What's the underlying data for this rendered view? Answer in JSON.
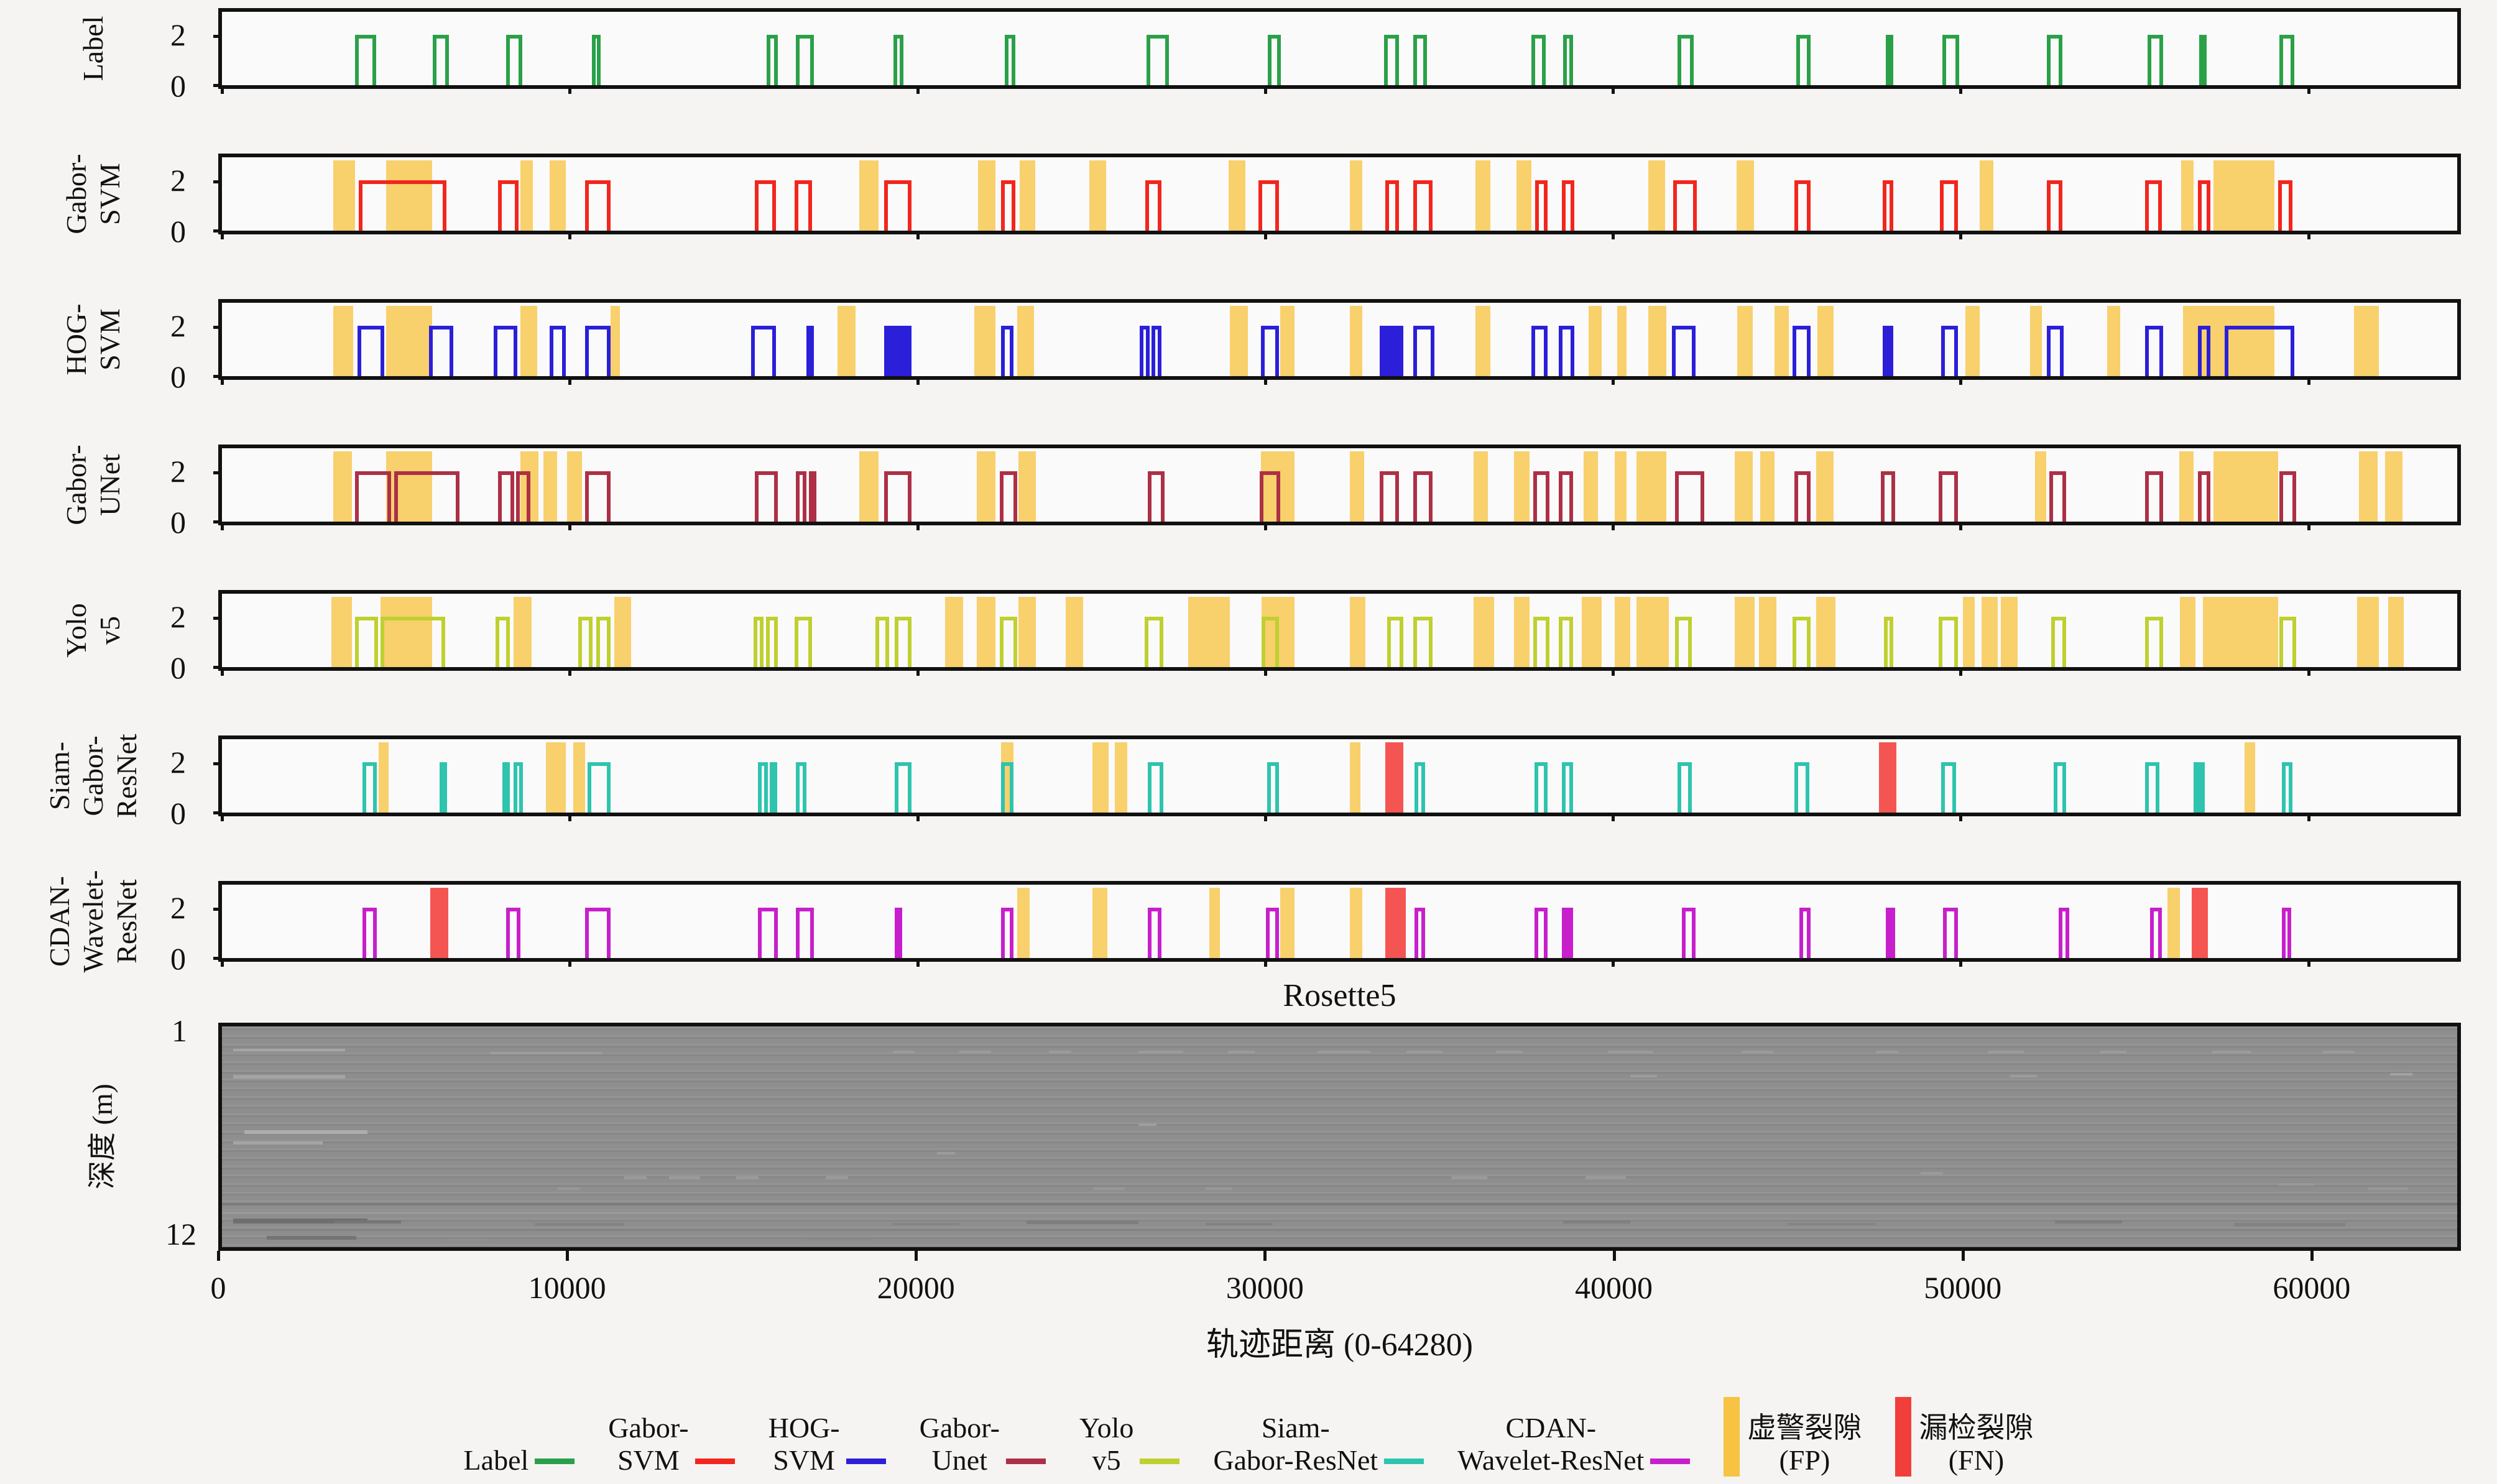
{
  "figure": {
    "title": "Rosette5",
    "xlabel": "轨迹距离 (0-64280)",
    "background": "#f5f4f2",
    "axis_color": "#111111"
  },
  "chart_data": {
    "type": "line",
    "subtype": "square-wave-detection-strips",
    "x_range": [
      0,
      64280
    ],
    "x_ticks": [
      0,
      10000,
      20000,
      30000,
      40000,
      50000,
      60000
    ],
    "strip_y_ticks": [
      "2",
      "0"
    ],
    "fp_color": "#f7be2f",
    "fn_color": "#f23e3a",
    "rows": [
      {
        "id": "label",
        "name_lines": "Label",
        "color": "#2aa148",
        "pulses": [
          [
            3830,
            4440
          ],
          [
            6070,
            6520
          ],
          [
            8180,
            8630
          ],
          [
            10640,
            10890
          ],
          [
            15670,
            15980
          ],
          [
            16500,
            17020
          ],
          [
            19310,
            19600
          ],
          [
            22520,
            22810
          ],
          [
            26580,
            27240
          ],
          [
            30080,
            30450
          ],
          [
            33420,
            33840
          ],
          [
            34250,
            34660
          ],
          [
            37650,
            38060
          ],
          [
            38560,
            38850
          ],
          [
            41850,
            42330
          ],
          [
            45270,
            45680
          ],
          [
            47850,
            48020
          ],
          [
            49470,
            49950
          ],
          [
            52470,
            52930
          ],
          [
            55370,
            55820
          ],
          [
            56860,
            56990
          ],
          [
            59170,
            59590
          ]
        ],
        "fp": [],
        "fn": []
      },
      {
        "id": "gabor-svm",
        "name_lines": "Gabor-\nSVM",
        "color": "#f2261d",
        "pulses": [
          [
            3930,
            6460
          ],
          [
            7930,
            8530
          ],
          [
            10450,
            11180
          ],
          [
            15320,
            15940
          ],
          [
            16460,
            16970
          ],
          [
            19040,
            19830
          ],
          [
            22400,
            22810
          ],
          [
            26560,
            27010
          ],
          [
            29810,
            30390
          ],
          [
            33460,
            33840
          ],
          [
            34250,
            34810
          ],
          [
            37770,
            38120
          ],
          [
            38540,
            38890
          ],
          [
            41740,
            42410
          ],
          [
            45220,
            45680
          ],
          [
            47750,
            48060
          ],
          [
            49400,
            49920
          ],
          [
            52470,
            52930
          ],
          [
            55300,
            55780
          ],
          [
            56820,
            57190
          ],
          [
            59130,
            59550
          ]
        ],
        "fp": [
          [
            3200,
            3830
          ],
          [
            4720,
            6040
          ],
          [
            8590,
            8940
          ],
          [
            9420,
            9890
          ],
          [
            18320,
            18880
          ],
          [
            21740,
            22250
          ],
          [
            22940,
            23390
          ],
          [
            24940,
            25420
          ],
          [
            28940,
            29440
          ],
          [
            32430,
            32800
          ],
          [
            36050,
            36470
          ],
          [
            37230,
            37650
          ],
          [
            41020,
            41500
          ],
          [
            43550,
            44060
          ],
          [
            50540,
            50950
          ],
          [
            56340,
            56690
          ],
          [
            57270,
            59030
          ]
        ],
        "fn": []
      },
      {
        "id": "hog-svm",
        "name_lines": "HOG-\nSVM",
        "color": "#2b1fd9",
        "pulses": [
          [
            3890,
            4660
          ],
          [
            5960,
            6660
          ],
          [
            7820,
            8490
          ],
          [
            9420,
            9890
          ],
          [
            10450,
            11180
          ],
          [
            15210,
            15940
          ],
          [
            16800,
            16970
          ],
          [
            19040,
            19830,
            1
          ],
          [
            22400,
            22770
          ],
          [
            26400,
            26680
          ],
          [
            26740,
            27010
          ],
          [
            29870,
            30390
          ],
          [
            33300,
            33980,
            1
          ],
          [
            34250,
            34870
          ],
          [
            37650,
            38120
          ],
          [
            38440,
            38890
          ],
          [
            41700,
            42370
          ],
          [
            45160,
            45680
          ],
          [
            47750,
            48060,
            1
          ],
          [
            49440,
            49920
          ],
          [
            52470,
            52970
          ],
          [
            55300,
            55820
          ],
          [
            56820,
            57190
          ],
          [
            57600,
            59590
          ]
        ],
        "fp": [
          [
            3200,
            3770
          ],
          [
            4720,
            6040
          ],
          [
            8590,
            9060
          ],
          [
            11180,
            11440
          ],
          [
            17700,
            18220
          ],
          [
            21630,
            22250
          ],
          [
            22870,
            23350
          ],
          [
            28980,
            29500
          ],
          [
            30430,
            30840
          ],
          [
            32430,
            32800
          ],
          [
            36050,
            36470
          ],
          [
            39300,
            39680
          ],
          [
            40130,
            40400
          ],
          [
            41020,
            41540
          ],
          [
            43570,
            44020
          ],
          [
            44640,
            45050
          ],
          [
            45880,
            46340
          ],
          [
            50130,
            50540
          ],
          [
            51990,
            52340
          ],
          [
            54210,
            54580
          ],
          [
            56400,
            59030
          ],
          [
            61310,
            62030
          ]
        ],
        "fn": []
      },
      {
        "id": "gabor-unet",
        "name_lines": "Gabor-\nUNet",
        "color": "#ad3046",
        "pulses": [
          [
            3830,
            4860
          ],
          [
            4950,
            6830
          ],
          [
            7930,
            8410
          ],
          [
            8450,
            8860
          ],
          [
            10450,
            11180
          ],
          [
            15320,
            15980
          ],
          [
            16510,
            16800
          ],
          [
            16880,
            17020
          ],
          [
            19040,
            19830
          ],
          [
            22360,
            22870
          ],
          [
            26620,
            27110
          ],
          [
            29850,
            30430
          ],
          [
            33300,
            33840
          ],
          [
            34250,
            34810
          ],
          [
            37710,
            38180
          ],
          [
            38440,
            38850
          ],
          [
            41780,
            42620
          ],
          [
            45220,
            45680
          ],
          [
            47710,
            48120
          ],
          [
            49360,
            49920
          ],
          [
            52550,
            53030
          ],
          [
            55300,
            55820
          ],
          [
            56820,
            57190
          ],
          [
            59170,
            59650
          ]
        ],
        "fp": [
          [
            3200,
            3730
          ],
          [
            4720,
            6040
          ],
          [
            8590,
            9110
          ],
          [
            9250,
            9630
          ],
          [
            9930,
            10350
          ],
          [
            18320,
            18880
          ],
          [
            21700,
            22250
          ],
          [
            22900,
            23400
          ],
          [
            29870,
            30840
          ],
          [
            32430,
            32840
          ],
          [
            35990,
            36410
          ],
          [
            37150,
            37610
          ],
          [
            39160,
            39570
          ],
          [
            40050,
            40400
          ],
          [
            40670,
            41540
          ],
          [
            43500,
            44020
          ],
          [
            44230,
            44640
          ],
          [
            45840,
            46340
          ],
          [
            52140,
            52470
          ],
          [
            56280,
            56690
          ],
          [
            57270,
            59130
          ],
          [
            61450,
            61990
          ],
          [
            62200,
            62700
          ]
        ],
        "fn": []
      },
      {
        "id": "yolo-v5",
        "name_lines": "Yolo\nv5",
        "color": "#bfd02f",
        "pulses": [
          [
            3830,
            4480
          ],
          [
            4560,
            6420
          ],
          [
            7870,
            8280
          ],
          [
            10240,
            10660
          ],
          [
            10760,
            11180
          ],
          [
            15280,
            15570
          ],
          [
            15650,
            15980
          ],
          [
            16460,
            16970
          ],
          [
            18790,
            19180
          ],
          [
            19350,
            19830
          ],
          [
            22360,
            22870
          ],
          [
            26540,
            27070
          ],
          [
            29900,
            30390
          ],
          [
            33500,
            33970
          ],
          [
            34250,
            34810
          ],
          [
            37710,
            38180
          ],
          [
            38440,
            38850
          ],
          [
            41780,
            42270
          ],
          [
            45160,
            45680
          ],
          [
            47790,
            48060
          ],
          [
            49360,
            49920
          ],
          [
            52610,
            53030
          ],
          [
            55300,
            55820
          ],
          [
            59170,
            59650
          ]
        ],
        "fp": [
          [
            3150,
            3730
          ],
          [
            4560,
            6040
          ],
          [
            8390,
            8900
          ],
          [
            11280,
            11760
          ],
          [
            20800,
            21320
          ],
          [
            21700,
            22250
          ],
          [
            22900,
            23400
          ],
          [
            24260,
            24760
          ],
          [
            27780,
            28980
          ],
          [
            29900,
            30840
          ],
          [
            32430,
            32880
          ],
          [
            35990,
            36580
          ],
          [
            37150,
            37610
          ],
          [
            39100,
            39670
          ],
          [
            40050,
            40500
          ],
          [
            40670,
            41600
          ],
          [
            43500,
            44080
          ],
          [
            44200,
            44700
          ],
          [
            45840,
            46400
          ],
          [
            50070,
            50400
          ],
          [
            50600,
            51060
          ],
          [
            51160,
            51640
          ],
          [
            56300,
            56750
          ],
          [
            56960,
            59130
          ],
          [
            61410,
            62030
          ],
          [
            62300,
            62750
          ]
        ],
        "fn": []
      },
      {
        "id": "siam-gabor-resnet",
        "name_lines": "Siam-\nGabor-\nResNet",
        "color": "#2ec4ae",
        "pulses": [
          [
            4040,
            4450
          ],
          [
            6250,
            6420
          ],
          [
            8070,
            8280
          ],
          [
            8390,
            8650
          ],
          [
            10510,
            11180
          ],
          [
            15420,
            15700
          ],
          [
            15760,
            15940
          ],
          [
            16500,
            16800
          ],
          [
            19350,
            19830
          ],
          [
            22400,
            22770
          ],
          [
            26620,
            27070
          ],
          [
            30060,
            30390
          ],
          [
            34290,
            34600
          ],
          [
            37750,
            38120
          ],
          [
            38540,
            38850
          ],
          [
            41850,
            42270
          ],
          [
            45220,
            45640
          ],
          [
            49440,
            49860
          ],
          [
            52670,
            53030
          ],
          [
            55300,
            55720
          ],
          [
            56690,
            57020,
            1
          ],
          [
            59230,
            59550
          ]
        ],
        "fp": [
          [
            4510,
            4800
          ],
          [
            9320,
            9890
          ],
          [
            10100,
            10450
          ],
          [
            22400,
            22770
          ],
          [
            25040,
            25500
          ],
          [
            25670,
            26040
          ],
          [
            32430,
            32740
          ],
          [
            58160,
            58470
          ]
        ],
        "fn": [
          [
            33460,
            33980
          ],
          [
            47650,
            48160
          ]
        ]
      },
      {
        "id": "cdan-wavelet-resnet",
        "name_lines": "CDAN-\nWavelet-\nResNet",
        "color": "#c71fcc",
        "pulses": [
          [
            4040,
            4450
          ],
          [
            8180,
            8590
          ],
          [
            10450,
            11180
          ],
          [
            15420,
            15980
          ],
          [
            16500,
            17020
          ],
          [
            19350,
            19560
          ],
          [
            22400,
            22770
          ],
          [
            26620,
            27010
          ],
          [
            30020,
            30390
          ],
          [
            34290,
            34600
          ],
          [
            37750,
            38120
          ],
          [
            38540,
            38850,
            1
          ],
          [
            41990,
            42370
          ],
          [
            45370,
            45680
          ],
          [
            47850,
            48120,
            1
          ],
          [
            49500,
            49920
          ],
          [
            52820,
            53130
          ],
          [
            55450,
            55780
          ],
          [
            59230,
            59500
          ]
        ],
        "fp": [
          [
            22870,
            23220
          ],
          [
            25040,
            25460
          ],
          [
            28400,
            28700
          ],
          [
            30430,
            30840
          ],
          [
            32430,
            32800
          ],
          [
            55950,
            56300
          ]
        ],
        "fn": [
          [
            5990,
            6500
          ],
          [
            33460,
            34040
          ],
          [
            56650,
            57110
          ]
        ]
      }
    ],
    "depth_panel": {
      "ylabel": "深度 (m)",
      "ytick_top": "1",
      "ytick_bottom": "12"
    }
  },
  "legend": {
    "items": [
      {
        "label_lines": "Label",
        "color": "#2aa148"
      },
      {
        "label_lines": "Gabor-\nSVM",
        "color": "#f2261d"
      },
      {
        "label_lines": "HOG-\nSVM",
        "color": "#2b1fd9"
      },
      {
        "label_lines": "Gabor-\nUnet",
        "color": "#ad3046"
      },
      {
        "label_lines": "Yolo\nv5",
        "color": "#bfd02f"
      },
      {
        "label_lines": "Siam-\nGabor-ResNet",
        "color": "#2ec4ae"
      },
      {
        "label_lines": "CDAN-\nWavelet-ResNet",
        "color": "#c71fcc"
      }
    ],
    "markers": [
      {
        "label_lines": "虚警裂隙\n(FP)",
        "color": "#f6c342"
      },
      {
        "label_lines": "漏检裂隙\n(FN)",
        "color": "#f23e3a"
      }
    ]
  }
}
